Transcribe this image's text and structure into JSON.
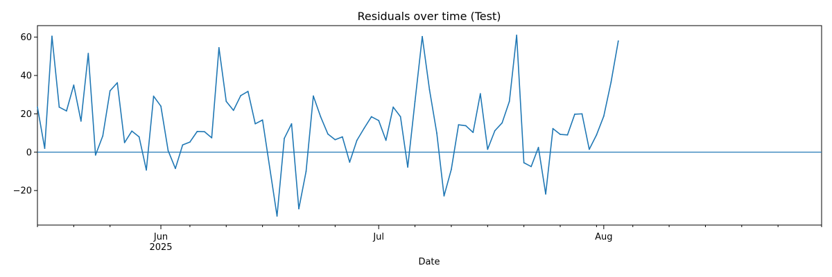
{
  "chart_data": {
    "type": "line",
    "title": "Residuals over time (Test)",
    "xlabel": "Date",
    "ylabel": "",
    "x_start": "2025-05-15",
    "x_end": "2025-08-31",
    "ylim": [
      -38,
      66
    ],
    "y_ticks": [
      -20,
      0,
      20,
      40,
      60
    ],
    "x_major_ticks": [
      {
        "date": "2025-06-01",
        "label": "Jun",
        "sublabel": "2025"
      },
      {
        "date": "2025-07-01",
        "label": "Jul",
        "sublabel": ""
      },
      {
        "date": "2025-08-01",
        "label": "Aug",
        "sublabel": ""
      }
    ],
    "x_minor_ticks": [
      "2025-05-15",
      "2025-05-20",
      "2025-05-25",
      "2025-06-05",
      "2025-06-10",
      "2025-06-15",
      "2025-06-20",
      "2025-06-25",
      "2025-07-06",
      "2025-07-11",
      "2025-07-16",
      "2025-07-21",
      "2025-07-26",
      "2025-07-31",
      "2025-08-05",
      "2025-08-10",
      "2025-08-15",
      "2025-08-20",
      "2025-08-25",
      "2025-08-31"
    ],
    "zero_line": 0,
    "grid": false,
    "series": [
      {
        "color": "#1f77b4",
        "points": [
          [
            "2025-05-15",
            23.5
          ],
          [
            "2025-05-16",
            2.0
          ],
          [
            "2025-05-17",
            60.5
          ],
          [
            "2025-05-18",
            23.5
          ],
          [
            "2025-05-19",
            21.5
          ],
          [
            "2025-05-20",
            35.0
          ],
          [
            "2025-05-21",
            16.2
          ],
          [
            "2025-05-22",
            51.5
          ],
          [
            "2025-05-23",
            -1.5
          ],
          [
            "2025-05-24",
            8.5
          ],
          [
            "2025-05-25",
            32.0
          ],
          [
            "2025-05-26",
            36.2
          ],
          [
            "2025-05-27",
            5.0
          ],
          [
            "2025-05-28",
            11.0
          ],
          [
            "2025-05-29",
            8.0
          ],
          [
            "2025-05-30",
            -9.3
          ],
          [
            "2025-05-31",
            29.2
          ],
          [
            "2025-06-01",
            24.0
          ],
          [
            "2025-06-02",
            0.8
          ],
          [
            "2025-06-03",
            -8.5
          ],
          [
            "2025-06-04",
            3.8
          ],
          [
            "2025-06-05",
            5.3
          ],
          [
            "2025-06-06",
            10.8
          ],
          [
            "2025-06-07",
            10.7
          ],
          [
            "2025-06-08",
            7.5
          ],
          [
            "2025-06-09",
            54.5
          ],
          [
            "2025-06-10",
            26.5
          ],
          [
            "2025-06-11",
            21.8
          ],
          [
            "2025-06-12",
            29.5
          ],
          [
            "2025-06-13",
            31.7
          ],
          [
            "2025-06-14",
            14.8
          ],
          [
            "2025-06-15",
            16.8
          ],
          [
            "2025-06-17",
            -33.3
          ],
          [
            "2025-06-18",
            7.2
          ],
          [
            "2025-06-19",
            14.8
          ],
          [
            "2025-06-20",
            -29.5
          ],
          [
            "2025-06-21",
            -10.0
          ],
          [
            "2025-06-22",
            29.3
          ],
          [
            "2025-06-23",
            18.5
          ],
          [
            "2025-06-24",
            9.5
          ],
          [
            "2025-06-25",
            6.5
          ],
          [
            "2025-06-26",
            8.0
          ],
          [
            "2025-06-27",
            -5.2
          ],
          [
            "2025-06-28",
            6.2
          ],
          [
            "2025-06-29",
            12.5
          ],
          [
            "2025-06-30",
            18.5
          ],
          [
            "2025-07-01",
            16.5
          ],
          [
            "2025-07-02",
            6.2
          ],
          [
            "2025-07-03",
            23.5
          ],
          [
            "2025-07-04",
            18.5
          ],
          [
            "2025-07-05",
            -7.8
          ],
          [
            "2025-07-06",
            26.5
          ],
          [
            "2025-07-07",
            60.3
          ],
          [
            "2025-07-08",
            32.5
          ],
          [
            "2025-07-09",
            10.0
          ],
          [
            "2025-07-10",
            -22.8
          ],
          [
            "2025-07-11",
            -9.0
          ],
          [
            "2025-07-12",
            14.3
          ],
          [
            "2025-07-13",
            13.8
          ],
          [
            "2025-07-14",
            10.3
          ],
          [
            "2025-07-15",
            30.5
          ],
          [
            "2025-07-16",
            1.5
          ],
          [
            "2025-07-17",
            11.2
          ],
          [
            "2025-07-18",
            15.3
          ],
          [
            "2025-07-19",
            26.5
          ],
          [
            "2025-07-20",
            61.0
          ],
          [
            "2025-07-21",
            -5.5
          ],
          [
            "2025-07-22",
            -7.5
          ],
          [
            "2025-07-23",
            2.5
          ],
          [
            "2025-07-24",
            -21.8
          ],
          [
            "2025-07-25",
            12.3
          ],
          [
            "2025-07-26",
            9.3
          ],
          [
            "2025-07-27",
            9.0
          ],
          [
            "2025-07-28",
            19.8
          ],
          [
            "2025-07-29",
            20.0
          ],
          [
            "2025-07-30",
            1.5
          ],
          [
            "2025-07-31",
            9.0
          ],
          [
            "2025-08-01",
            18.8
          ],
          [
            "2025-08-02",
            36.5
          ],
          [
            "2025-08-03",
            58.0
          ]
        ]
      }
    ]
  }
}
